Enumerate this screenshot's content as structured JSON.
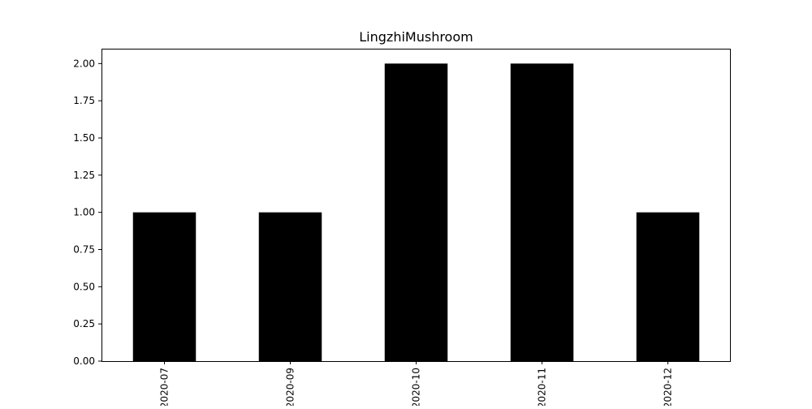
{
  "chart_data": {
    "type": "bar",
    "title": "LingzhiMushroom",
    "xlabel": "",
    "ylabel": "",
    "categories": [
      "2020-07",
      "2020-09",
      "2020-10",
      "2020-11",
      "2020-12"
    ],
    "values": [
      1,
      1,
      2,
      2,
      1
    ],
    "ylim": [
      0,
      2.1
    ],
    "yticks": [
      "0.00",
      "0.25",
      "0.50",
      "0.75",
      "1.00",
      "1.25",
      "1.50",
      "1.75",
      "2.00"
    ],
    "bar_color": "#000000",
    "grid": false,
    "legend": "none"
  }
}
